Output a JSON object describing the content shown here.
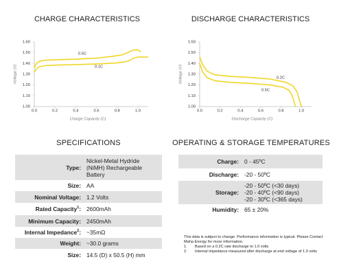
{
  "chart_data": [
    {
      "type": "line",
      "title": "CHARGE CHARACTERISTICS",
      "x_label": "Charge Capacity (C)",
      "y_label": "Voltage (V)",
      "xlim": [
        0,
        1.1
      ],
      "ylim": [
        1.0,
        1.6
      ],
      "xticks": [
        {
          "value": 0,
          "label": "0.0"
        },
        0.2,
        0.4,
        0.6,
        0.8,
        {
          "value": 1,
          "label": "1.0"
        }
      ],
      "yticks": [
        {
          "value": 1.0,
          "label": "1.00"
        },
        {
          "value": 1.1,
          "label": "1.10"
        },
        {
          "value": 1.2,
          "label": "1.20"
        },
        {
          "value": 1.3,
          "label": "1.30"
        },
        {
          "value": 1.4,
          "label": "1.40"
        },
        {
          "value": 1.5,
          "label": "1.50"
        },
        {
          "value": 1.6,
          "label": "1.60"
        }
      ],
      "series": [
        {
          "name": "0.5C",
          "color": "#f0d626",
          "x": [
            0,
            0.02,
            0.05,
            0.1,
            0.2,
            0.4,
            0.6,
            0.75,
            0.85,
            0.92,
            0.96,
            1.0,
            1.03
          ],
          "values": [
            1.36,
            1.4,
            1.42,
            1.43,
            1.435,
            1.44,
            1.45,
            1.465,
            1.48,
            1.51,
            1.525,
            1.525,
            1.51
          ]
        },
        {
          "name": "0.1C",
          "color": "#f0d626",
          "x": [
            0,
            0.02,
            0.05,
            0.1,
            0.2,
            0.4,
            0.6,
            0.8,
            0.9,
            0.95,
            1.0,
            1.05,
            1.1
          ],
          "values": [
            1.32,
            1.35,
            1.37,
            1.38,
            1.385,
            1.39,
            1.395,
            1.405,
            1.42,
            1.445,
            1.46,
            1.46,
            1.46
          ]
        }
      ]
    },
    {
      "type": "line",
      "title": "DISCHARGE CHARACTERISTICS",
      "x_label": "Discharge Capacity (C)",
      "y_label": "Voltage (V)",
      "xlim": [
        0,
        1.1
      ],
      "ylim": [
        1.0,
        1.6
      ],
      "xticks": [
        {
          "value": 0,
          "label": "0.0"
        },
        0.2,
        0.4,
        0.6,
        0.8,
        {
          "value": 1,
          "label": "1.0"
        }
      ],
      "yticks": [
        {
          "value": 1.0,
          "label": "1.00"
        },
        {
          "value": 1.1,
          "label": "1.10"
        },
        {
          "value": 1.2,
          "label": "1.20"
        },
        {
          "value": 1.3,
          "label": "1.30"
        },
        {
          "value": 1.4,
          "label": "1.40"
        },
        {
          "value": 1.5,
          "label": "1.50"
        },
        {
          "value": 1.6,
          "label": "1.60"
        }
      ],
      "series": [
        {
          "name": "0.2C",
          "color": "#f0d626",
          "x": [
            0,
            0.03,
            0.07,
            0.15,
            0.3,
            0.5,
            0.7,
            0.85,
            0.92,
            0.96,
            0.98,
            1.0
          ],
          "values": [
            1.46,
            1.39,
            1.33,
            1.295,
            1.28,
            1.27,
            1.255,
            1.225,
            1.19,
            1.13,
            1.06,
            1.0
          ]
        },
        {
          "name": "0.5C",
          "color": "#f0d626",
          "x": [
            0,
            0.03,
            0.07,
            0.15,
            0.3,
            0.5,
            0.7,
            0.82,
            0.88,
            0.91,
            0.93,
            0.94
          ],
          "values": [
            1.4,
            1.32,
            1.27,
            1.24,
            1.225,
            1.215,
            1.2,
            1.18,
            1.15,
            1.1,
            1.04,
            1.0
          ]
        }
      ]
    }
  ],
  "specifications": {
    "title": "SPECIFICATIONS",
    "rows": [
      {
        "label": "Type:",
        "value": [
          "Nickel-Metal Hydride",
          "(NiMH) Rechargeable",
          "Battery"
        ]
      },
      {
        "label": "Size:",
        "value": [
          "AA"
        ]
      },
      {
        "label": "Nominal Voltage:",
        "value": [
          "1.2 Volts"
        ]
      },
      {
        "label": "Rated Capacity",
        "note": "1",
        "after": ":",
        "value": [
          "2600mAh"
        ]
      },
      {
        "label": "Minimum Capacity:",
        "value": [
          "2450mAh"
        ]
      },
      {
        "label": "Internal Impedance",
        "note": "2",
        "after": ":",
        "value": [
          "~35mΩ"
        ]
      },
      {
        "label": "Weight:",
        "value": [
          "~30.0 grams"
        ]
      },
      {
        "label": "Size:",
        "value": [
          "14.5 (D) x 50.5 (H) mm"
        ]
      }
    ]
  },
  "temperatures": {
    "title": "OPERATING & STORAGE TEMPERATURES",
    "rows": [
      {
        "label": "Charge:",
        "value": [
          "0 - 45ºC"
        ]
      },
      {
        "label": "Discharge:",
        "value": [
          "-20 - 50ºC"
        ]
      },
      {
        "label": "Storage:",
        "value": [
          "-20 - 50ºC (<30 days)",
          "-20 - 40ºC (<90 days)",
          "-20 - 30ºC (<365 days)"
        ]
      },
      {
        "label": "Humidity:",
        "value": [
          "65 ± 20%"
        ]
      }
    ]
  },
  "notes": {
    "intro": "This data is subject to change.  Performance information is typical. Please Contact Maha Energy for more information.",
    "items": [
      {
        "number": "1.",
        "text": "Based on a 0.2C rate discharge to 1.0 volts"
      },
      {
        "number": "2.",
        "text": "Internal impedance measured after discharge at end voltage of 1.0 volts"
      }
    ]
  }
}
